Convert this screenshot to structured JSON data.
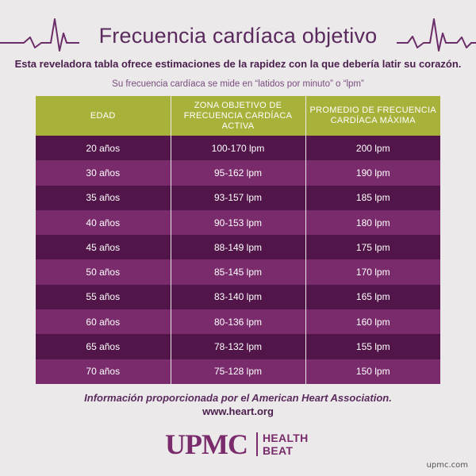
{
  "title": "Frecuencia cardíaca objetivo",
  "subtitle": "Esta reveladora tabla ofrece estimaciones de la rapidez con la que debería latir su corazón.",
  "note": "Su frecuencia cardíaca se mide en “latidos por minuto” o “lpm”",
  "table": {
    "headers": [
      "EDAD",
      "ZONA OBJETIVO DE FRECUENCIA CARDÍACA ACTIVA",
      "PROMEDIO DE FRECUENCIA CARDÍACA MÁXIMA"
    ],
    "rows": [
      [
        "20 años",
        "100-170 lpm",
        "200 lpm"
      ],
      [
        "30 años",
        "95-162 lpm",
        "190 lpm"
      ],
      [
        "35 años",
        "93-157 lpm",
        "185 lpm"
      ],
      [
        "40 años",
        "90-153 lpm",
        "180 lpm"
      ],
      [
        "45 años",
        "88-149 lpm",
        "175 lpm"
      ],
      [
        "50 años",
        "85-145 lpm",
        "170 lpm"
      ],
      [
        "55 años",
        "83-140 lpm",
        "165 lpm"
      ],
      [
        "60 años",
        "80-136 lpm",
        "160 lpm"
      ],
      [
        "65 años",
        "78-132 lpm",
        "155 lpm"
      ],
      [
        "70 años",
        "75-128 lpm",
        "150 lpm"
      ]
    ]
  },
  "footer": {
    "source": "Información proporcionada por el American Heart Association.",
    "url": "www.heart.org"
  },
  "logo": {
    "name": "UPMC",
    "tagline_line1": "HEALTH",
    "tagline_line2": "BEAT"
  },
  "site": "upmc.com",
  "colors": {
    "background": "#ebe9e9",
    "title": "#5b2a5e",
    "header": "#a8b23b",
    "row_dark": "#521549",
    "row_light": "#7a2b6c"
  },
  "icons": [
    "ecg-heartbeat-line-left",
    "ecg-heartbeat-line-right"
  ]
}
